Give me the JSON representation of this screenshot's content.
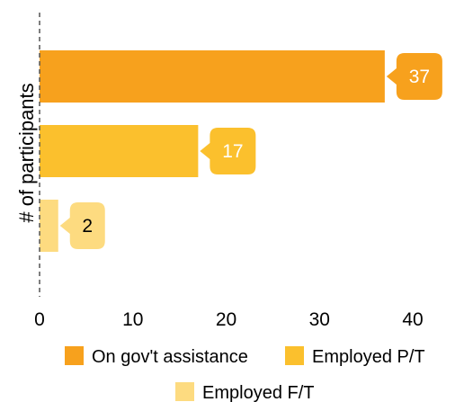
{
  "chart_data": {
    "type": "bar",
    "orientation": "horizontal",
    "ylabel": "# of participants",
    "xlabel": "",
    "xlim": [
      0,
      40
    ],
    "xticks": [
      0,
      10,
      20,
      30,
      40
    ],
    "grid": false,
    "legend_position": "bottom",
    "series": [
      {
        "name": "On gov't assistance",
        "value": 37,
        "color": "#F7A11D",
        "label_text_color": "#FFFFFF"
      },
      {
        "name": "Employed P/T",
        "value": 17,
        "color": "#FBC02D",
        "label_text_color": "#FFFFFF"
      },
      {
        "name": "Employed F/T",
        "value": 2,
        "color": "#FDDB80",
        "label_text_color": "#000000"
      }
    ]
  }
}
